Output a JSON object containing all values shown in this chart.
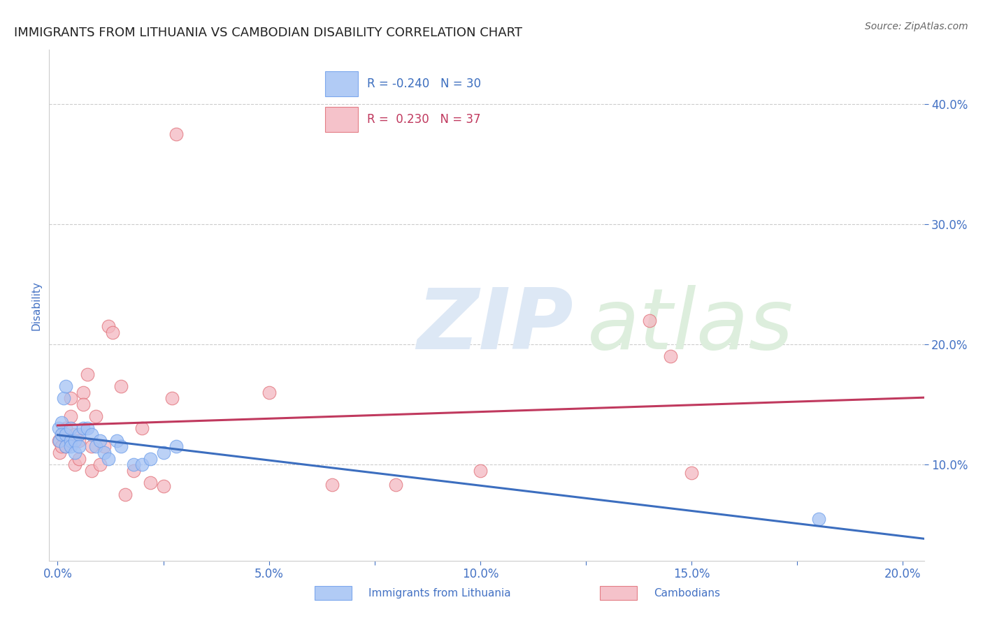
{
  "title": "IMMIGRANTS FROM LITHUANIA VS CAMBODIAN DISABILITY CORRELATION CHART",
  "source": "Source: ZipAtlas.com",
  "xlabel_ticks": [
    0.0,
    0.025,
    0.05,
    0.075,
    0.1,
    0.125,
    0.15,
    0.175,
    0.2
  ],
  "xlabel_labels": [
    "0.0%",
    "",
    "5.0%",
    "",
    "10.0%",
    "",
    "15.0%",
    "",
    "20.0%"
  ],
  "ylabel": "Disability",
  "ylabel_ticks": [
    0.1,
    0.2,
    0.3,
    0.4
  ],
  "ylabel_tick_labels": [
    "10.0%",
    "20.0%",
    "30.0%",
    "40.0%"
  ],
  "xlim": [
    -0.002,
    0.205
  ],
  "ylim": [
    0.02,
    0.445
  ],
  "blue_R": -0.24,
  "blue_N": 30,
  "pink_R": 0.23,
  "pink_N": 37,
  "blue_color": "#a4c2f4",
  "pink_color": "#f4b8c1",
  "blue_edge_color": "#6d9eeb",
  "pink_edge_color": "#e06c75",
  "blue_line_color": "#3c6ebf",
  "pink_line_color": "#c0395e",
  "blue_label": "Immigrants from Lithuania",
  "pink_label": "Cambodians",
  "blue_x": [
    0.0003,
    0.0005,
    0.001,
    0.001,
    0.0015,
    0.002,
    0.002,
    0.002,
    0.003,
    0.003,
    0.003,
    0.004,
    0.004,
    0.005,
    0.005,
    0.006,
    0.007,
    0.008,
    0.009,
    0.01,
    0.011,
    0.012,
    0.014,
    0.015,
    0.018,
    0.02,
    0.022,
    0.025,
    0.028,
    0.18
  ],
  "blue_y": [
    0.13,
    0.12,
    0.135,
    0.125,
    0.155,
    0.165,
    0.125,
    0.115,
    0.13,
    0.12,
    0.115,
    0.12,
    0.11,
    0.125,
    0.115,
    0.13,
    0.13,
    0.125,
    0.115,
    0.12,
    0.11,
    0.105,
    0.12,
    0.115,
    0.1,
    0.1,
    0.105,
    0.11,
    0.115,
    0.055
  ],
  "pink_x": [
    0.0003,
    0.0005,
    0.001,
    0.001,
    0.002,
    0.002,
    0.003,
    0.003,
    0.004,
    0.004,
    0.005,
    0.005,
    0.006,
    0.006,
    0.007,
    0.008,
    0.008,
    0.009,
    0.01,
    0.011,
    0.012,
    0.013,
    0.015,
    0.016,
    0.018,
    0.02,
    0.022,
    0.025,
    0.027,
    0.028,
    0.05,
    0.065,
    0.08,
    0.1,
    0.14,
    0.145,
    0.15
  ],
  "pink_y": [
    0.12,
    0.11,
    0.125,
    0.115,
    0.13,
    0.115,
    0.155,
    0.14,
    0.125,
    0.1,
    0.12,
    0.105,
    0.16,
    0.15,
    0.175,
    0.115,
    0.095,
    0.14,
    0.1,
    0.115,
    0.215,
    0.21,
    0.165,
    0.075,
    0.095,
    0.13,
    0.085,
    0.082,
    0.155,
    0.375,
    0.16,
    0.083,
    0.083,
    0.095,
    0.22,
    0.19,
    0.093
  ],
  "watermark_top": "ZIP",
  "watermark_bottom": "atlas",
  "watermark_color": "#dde8f5",
  "watermark_color2": "#ddeedd",
  "grid_color": "#cccccc",
  "grid_style": "--",
  "background_color": "#ffffff",
  "title_color": "#222222",
  "axis_color": "#4472c4",
  "tick_color": "#4472c4",
  "spine_color": "#cccccc"
}
